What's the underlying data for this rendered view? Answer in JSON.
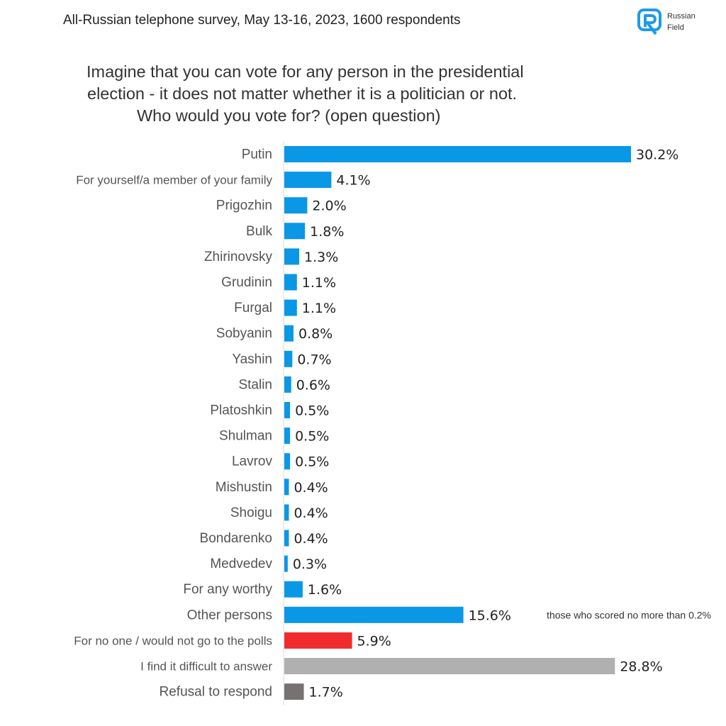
{
  "header": {
    "survey_info": "All-Russian telephone survey, May 13-16, 2023, 1600 respondents"
  },
  "logo": {
    "line1": "Russian",
    "line2": "Field",
    "color": "#1e9be6"
  },
  "question": {
    "line1": "Imagine that you can vote for any person in the presidential",
    "line2": "election - it does not matter whether it is a politician or not.",
    "line3": "Who would you vote for? (open question)"
  },
  "chart_data": {
    "type": "bar",
    "orientation": "horizontal",
    "title": "Imagine that you can vote for any person in the presidential election - it does not matter whether it is a politician or not. Who would you vote for? (open question)",
    "unit": "%",
    "categories": [
      "Putin",
      "For yourself/a member of your family",
      "Prigozhin",
      "Bulk",
      "Zhirinovsky",
      "Grudinin",
      "Furgal",
      "Sobyanin",
      "Yashin",
      "Stalin",
      "Platoshkin",
      "Shulman",
      "Lavrov",
      "Mishustin",
      "Shoigu",
      "Bondarenko",
      "Medvedev",
      "For any worthy",
      "Other persons",
      "For no one / would not go to the polls",
      "I find it difficult to answer",
      "Refusal to respond"
    ],
    "labels": [
      "30.2%",
      "4.1%",
      "2.0%",
      "1.8%",
      "1.3%",
      "1.1%",
      "1.1%",
      "0.8%",
      "0.7%",
      "0.6%",
      "0.5%",
      "0.5%",
      "0.5%",
      "0.4%",
      "0.4%",
      "0.4%",
      "0.3%",
      "1.6%",
      "15.6%",
      "5.9%",
      "28.8%",
      "1.7%"
    ],
    "values": [
      30.2,
      4.1,
      2.0,
      1.8,
      1.3,
      1.1,
      1.1,
      0.8,
      0.7,
      0.6,
      0.5,
      0.5,
      0.5,
      0.4,
      0.4,
      0.4,
      0.3,
      1.6,
      15.6,
      5.9,
      28.8,
      1.7
    ],
    "colors": [
      "#0a97e6",
      "#0a97e6",
      "#0a97e6",
      "#0a97e6",
      "#0a97e6",
      "#0a97e6",
      "#0a97e6",
      "#0a97e6",
      "#0a97e6",
      "#0a97e6",
      "#0a97e6",
      "#0a97e6",
      "#0a97e6",
      "#0a97e6",
      "#0a97e6",
      "#0a97e6",
      "#0a97e6",
      "#0a97e6",
      "#0a97e6",
      "#f02b2e",
      "#b0b0b0",
      "#767272"
    ],
    "annotation": {
      "category": "Other persons",
      "text": "those who scored no more than 0.2%"
    },
    "xlim": [
      0,
      30.2
    ]
  }
}
